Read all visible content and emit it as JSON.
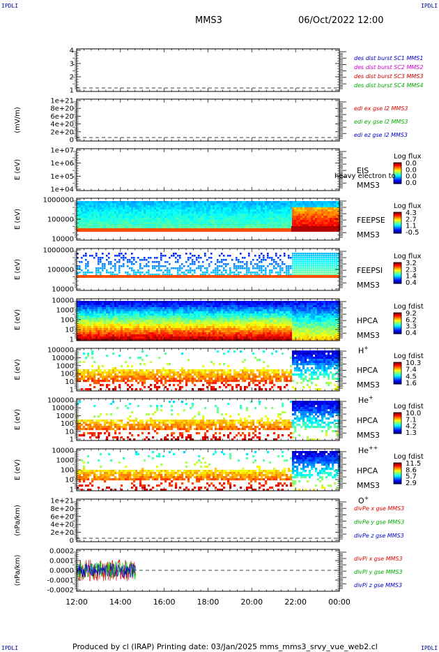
{
  "header": {
    "corner_mark": "IPDLI",
    "title": "MMS3",
    "datetime": "06/Oct/2022 12:00"
  },
  "footer": {
    "text": "Produced by cl (IRAP)   Printing date: 03/Jan/2025   mms_mms3_srvy_vue_web2.cl"
  },
  "time_axis": {
    "ticks": [
      "12:00",
      "14:00",
      "16:00",
      "18:00",
      "20:00",
      "22:00",
      "00:00"
    ],
    "range_hours": [
      12,
      24
    ]
  },
  "colors": {
    "red": "#dd0000",
    "green": "#00cc00",
    "blue": "#0000cc",
    "magenta": "#cc00cc",
    "darkred": "#cc0000",
    "legend_green": "#00aa00"
  },
  "chart_data": [
    {
      "type": "line",
      "id": "p1",
      "ylabel": "",
      "yticks": [
        "1",
        "2",
        "3",
        "4"
      ],
      "legend": [
        {
          "text": "des dist burst SC1 MMS1",
          "color": "#0000cc"
        },
        {
          "text": "des dist burst SC2 MMS2",
          "color": "#cc00cc"
        },
        {
          "text": "des dist burst SC3 MMS3",
          "color": "#cc0000"
        },
        {
          "text": "des dist burst SC4 MMS4",
          "color": "#00aa00"
        }
      ],
      "series": []
    },
    {
      "type": "line",
      "id": "p2",
      "ylabel": "(mV/m)",
      "yticks": [
        "0",
        "2e+20",
        "4e+20",
        "6e+20",
        "8e+20",
        "1e+21"
      ],
      "legend": [
        {
          "text": "edi ex gse l2 MMS3",
          "color": "#dd0000"
        },
        {
          "text": "edi ey gse l2 MMS3",
          "color": "#00aa00"
        },
        {
          "text": "edi ez gse l2 MMS3",
          "color": "#0000cc"
        }
      ],
      "series": []
    },
    {
      "type": "heatmap",
      "id": "p3",
      "ylabel": "E (eV)",
      "yticks": [
        "1e+04",
        "1e+05",
        "1e+06",
        "1e+07"
      ],
      "right_labels": [
        "EIS",
        "MMS3"
      ],
      "overlay_text": "heavy electron to",
      "colorbar": {
        "title": "Log flux",
        "ticks": [
          "0.0",
          "0.0",
          "0.0",
          "0.0"
        ]
      },
      "data_extent_hours": null
    },
    {
      "type": "heatmap",
      "id": "p4",
      "ylabel": "E (eV)",
      "yticks": [
        "10000",
        "100000",
        "1000000"
      ],
      "right_labels": [
        "FEEPSE",
        "MMS3"
      ],
      "colorbar": {
        "title": "Log flux",
        "ticks": [
          "4.3",
          "2.7",
          "1.1",
          "-0.5"
        ]
      },
      "data_extent_hours": [
        12,
        24
      ]
    },
    {
      "type": "heatmap",
      "id": "p5",
      "ylabel": "E (eV)",
      "yticks": [
        "10000",
        "100000",
        "1000000"
      ],
      "right_labels": [
        "FEEPSI",
        "MMS3"
      ],
      "colorbar": {
        "title": "Log flux",
        "ticks": [
          "3.2",
          "2.3",
          "1.4",
          "0.4"
        ]
      },
      "data_extent_hours": [
        12,
        24
      ]
    },
    {
      "type": "heatmap",
      "id": "p6",
      "ylabel": "E (eV)",
      "yticks": [
        "1",
        "10",
        "100",
        "1000",
        "10000"
      ],
      "right_labels": [
        "HPCA",
        "MMS3"
      ],
      "species": "H",
      "species_sup": "+",
      "colorbar": {
        "title": "Log fdist",
        "ticks": [
          "9.2",
          "6.2",
          "3.3",
          "0.4"
        ]
      },
      "data_extent_hours": [
        12,
        24
      ]
    },
    {
      "type": "heatmap",
      "id": "p7",
      "ylabel": "E (eV)",
      "yticks": [
        "1",
        "10",
        "100",
        "1000",
        "10000",
        "100000"
      ],
      "right_labels": [
        "HPCA",
        "MMS3"
      ],
      "species": "He",
      "species_sup": "+",
      "colorbar": {
        "title": "Log fdist",
        "ticks": [
          "10.3",
          "7.4",
          "4.5",
          "1.6"
        ]
      },
      "data_extent_hours": [
        12,
        24
      ]
    },
    {
      "type": "heatmap",
      "id": "p8",
      "ylabel": "E (eV)",
      "yticks": [
        "1",
        "10",
        "100",
        "1000",
        "10000",
        "100000"
      ],
      "right_labels": [
        "HPCA",
        "MMS3"
      ],
      "species": "He",
      "species_sup": "++",
      "colorbar": {
        "title": "Log fdist",
        "ticks": [
          "10.0",
          "7.1",
          "4.2",
          "1.3"
        ]
      },
      "data_extent_hours": [
        12,
        24
      ]
    },
    {
      "type": "heatmap",
      "id": "p9",
      "ylabel": "E (eV)",
      "yticks": [
        "1",
        "10",
        "100",
        "1000",
        "10000"
      ],
      "right_labels": [
        "HPCA",
        "MMS3"
      ],
      "species": "O",
      "species_sup": "+",
      "colorbar": {
        "title": "Log fdist",
        "ticks": [
          "11.5",
          "8.6",
          "5.7",
          "2.9"
        ]
      },
      "data_extent_hours": [
        12,
        24
      ]
    },
    {
      "type": "line",
      "id": "p10",
      "ylabel": "(nPa/km)",
      "yticks": [
        "0",
        "2e+20",
        "4e+20",
        "6e+20",
        "8e+20",
        "1e+21"
      ],
      "legend": [
        {
          "text": "divPe x gse MMS3",
          "color": "#dd0000"
        },
        {
          "text": "divPe y gse MMS3",
          "color": "#00aa00"
        },
        {
          "text": "divPe z gse MMS3",
          "color": "#0000cc"
        }
      ],
      "series": []
    },
    {
      "type": "line",
      "id": "p11",
      "ylabel": "(nPa/km)",
      "yticks": [
        "-0.0002",
        "-0.0001",
        "0.0000",
        "0.0001",
        "0.0002"
      ],
      "ylim": [
        -0.00023,
        0.00023
      ],
      "legend": [
        {
          "text": "divPi x gse MMS3",
          "color": "#dd0000"
        },
        {
          "text": "divPi y gse MMS3",
          "color": "#00aa00"
        },
        {
          "text": "divPi z gse MMS3",
          "color": "#0000cc"
        }
      ],
      "series": [
        {
          "color": "#dd0000",
          "x_range_hours": [
            12.0,
            14.7
          ],
          "amplitude": 0.00012
        },
        {
          "color": "#00cc00",
          "x_range_hours": [
            12.0,
            14.7
          ],
          "amplitude": 0.0001
        },
        {
          "color": "#0000cc",
          "x_range_hours": [
            12.0,
            14.7
          ],
          "amplitude": 8e-05
        }
      ]
    }
  ]
}
